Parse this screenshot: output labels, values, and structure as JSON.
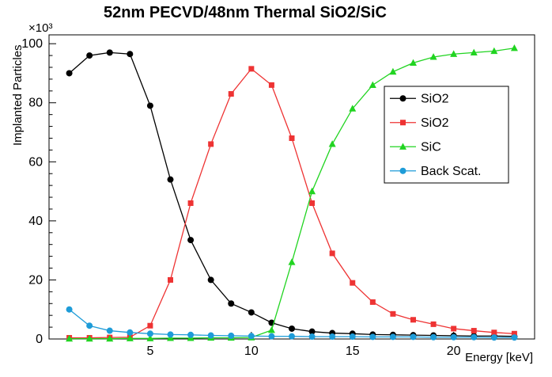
{
  "chart_data": {
    "type": "line",
    "title": "52nm PECVD/48nm Thermal SiO2/SiC",
    "xlabel": "Energy [keV]",
    "ylabel": "Implanted Particles",
    "y_scale_label": "×10³",
    "xlim": [
      0,
      24
    ],
    "ylim": [
      0,
      103
    ],
    "xticks": [
      5,
      10,
      15,
      20
    ],
    "x_minor_step": 1,
    "yticks": [
      0,
      20,
      40,
      60,
      80,
      100
    ],
    "y_minor_step": 4,
    "grid": false,
    "legend_position": "middle-right",
    "x": [
      1,
      2,
      3,
      4,
      5,
      6,
      7,
      8,
      9,
      10,
      11,
      12,
      13,
      14,
      15,
      16,
      17,
      18,
      19,
      20,
      21,
      22,
      23
    ],
    "series": [
      {
        "name": "SiO2",
        "color": "#000000",
        "marker": "circle",
        "values": [
          90,
          96,
          97,
          96.5,
          79,
          54,
          33.5,
          20,
          12,
          9,
          5.5,
          3.5,
          2.5,
          2,
          1.8,
          1.5,
          1.4,
          1.3,
          1.2,
          1.1,
          1,
          1,
          0.9
        ]
      },
      {
        "name": "SiO2",
        "color": "#ee3333",
        "marker": "square",
        "values": [
          0.4,
          0.4,
          0.5,
          0.6,
          4.5,
          20,
          46,
          66,
          83,
          91.5,
          86,
          68,
          46,
          29,
          19,
          12.5,
          8.5,
          6.5,
          5,
          3.5,
          2.8,
          2.2,
          1.8
        ]
      },
      {
        "name": "SiC",
        "color": "#21d421",
        "marker": "triangle-up",
        "values": [
          0.1,
          0.1,
          0.1,
          0.2,
          0.2,
          0.3,
          0.3,
          0.4,
          0.4,
          0.5,
          3,
          26,
          50,
          66,
          78,
          86,
          90.5,
          93.5,
          95.5,
          96.5,
          97,
          97.5,
          98.5
        ]
      },
      {
        "name": "Back Scat.",
        "color": "#1e9cd8",
        "marker": "circle",
        "values": [
          10,
          4.5,
          2.8,
          2.2,
          1.8,
          1.5,
          1.4,
          1.2,
          1.1,
          1,
          0.9,
          0.9,
          0.8,
          0.8,
          0.8,
          0.7,
          0.7,
          0.7,
          0.6,
          0.6,
          0.6,
          0.5,
          0.5
        ]
      }
    ]
  }
}
